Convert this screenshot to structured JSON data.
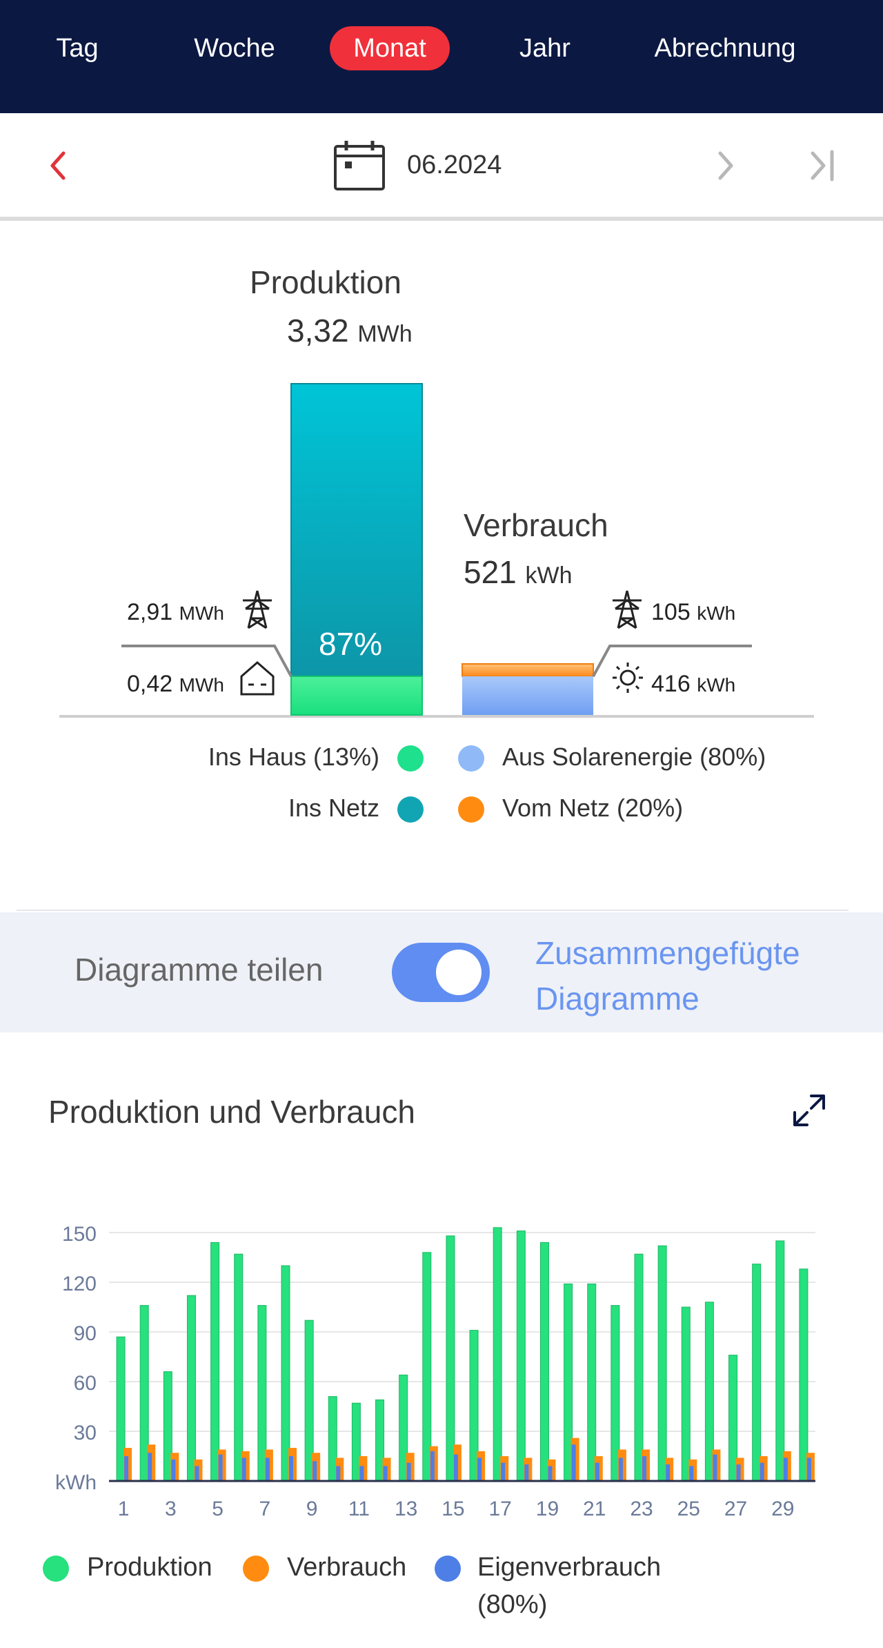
{
  "tabs": [
    {
      "label": "Tag",
      "active": false
    },
    {
      "label": "Woche",
      "active": false
    },
    {
      "label": "Monat",
      "active": true
    },
    {
      "label": "Jahr",
      "active": false
    },
    {
      "label": "Abrechnung",
      "active": false
    }
  ],
  "datenav": {
    "date": "06.2024",
    "icons": [
      "chevron-left-icon",
      "calendar-icon",
      "chevron-right-icon",
      "skip-to-end-icon"
    ]
  },
  "overview": {
    "production": {
      "title": "Produktion",
      "value": "3,32",
      "unit": "MWh",
      "self_use_percent": 13,
      "grid_percent": 87,
      "bar_label": "87%"
    },
    "consumption": {
      "title": "Verbrauch",
      "value": "521",
      "unit": "kWh",
      "solar_percent": 80,
      "grid_percent": 20
    },
    "left_labels": [
      {
        "value": "2,91",
        "unit": "MWh",
        "icon": "power-pylon-icon"
      },
      {
        "value": "0,42",
        "unit": "MWh",
        "icon": "house-icon"
      }
    ],
    "right_labels": [
      {
        "value": "105",
        "unit": "kWh",
        "icon": "power-pylon-icon"
      },
      {
        "value": "416",
        "unit": "kWh",
        "icon": "sun-icon"
      }
    ],
    "legend": [
      {
        "label": "Ins Haus (13%)",
        "color": "#1fe08c"
      },
      {
        "label": "Aus Solarenergie (80%)",
        "color": "#8fbaf7"
      },
      {
        "label": "Ins Netz",
        "color": "#11a5b4"
      },
      {
        "label": "Vom Netz (20%)",
        "color": "#ff8c10"
      }
    ]
  },
  "toggle": {
    "left_label": "Diagramme teilen",
    "right_label_line1": "Zusammengefügte",
    "right_label_line2": "Diagramme",
    "on": true
  },
  "chart_section": {
    "title": "Produktion und Verbrauch",
    "expand_icon": "expand-icon"
  },
  "chart_data": {
    "type": "bar",
    "ylabel": "kWh",
    "ylim": [
      0,
      150
    ],
    "yticks": [
      30,
      60,
      90,
      120,
      150
    ],
    "categories": [
      "1",
      "2",
      "3",
      "4",
      "5",
      "6",
      "7",
      "8",
      "9",
      "10",
      "11",
      "12",
      "13",
      "14",
      "15",
      "16",
      "17",
      "18",
      "19",
      "20",
      "21",
      "22",
      "23",
      "24",
      "25",
      "26",
      "27",
      "28",
      "29",
      "30"
    ],
    "xtick_labels": [
      "1",
      "3",
      "5",
      "7",
      "9",
      "11",
      "13",
      "15",
      "17",
      "19",
      "21",
      "23",
      "25",
      "27",
      "29"
    ],
    "series": [
      {
        "name": "Produktion",
        "color": "#27e07e",
        "values": [
          87,
          106,
          66,
          112,
          144,
          137,
          106,
          130,
          97,
          51,
          47,
          49,
          64,
          138,
          148,
          91,
          153,
          151,
          144,
          119,
          119,
          106,
          137,
          142,
          105,
          108,
          76,
          131,
          145,
          128
        ]
      },
      {
        "name": "Verbrauch",
        "color": "#ff8c10",
        "values": [
          20,
          22,
          17,
          13,
          19,
          18,
          19,
          20,
          17,
          14,
          15,
          14,
          17,
          21,
          22,
          18,
          15,
          14,
          13,
          26,
          15,
          19,
          19,
          14,
          13,
          19,
          14,
          15,
          18,
          17
        ]
      },
      {
        "name": "Eigenverbrauch",
        "color": "#4d7fe6",
        "values": [
          15,
          17,
          13,
          9,
          16,
          14,
          14,
          15,
          12,
          9,
          9,
          9,
          11,
          18,
          16,
          14,
          11,
          10,
          9,
          22,
          11,
          14,
          15,
          10,
          9,
          16,
          10,
          11,
          14,
          14
        ]
      }
    ],
    "legend": [
      {
        "label": "Produktion",
        "color": "#27e07e"
      },
      {
        "label": "Verbrauch",
        "color": "#ff8c10"
      },
      {
        "label": "Eigenverbrauch",
        "color": "#4d7fe6"
      },
      {
        "label": "(80%)",
        "color": ""
      }
    ]
  }
}
